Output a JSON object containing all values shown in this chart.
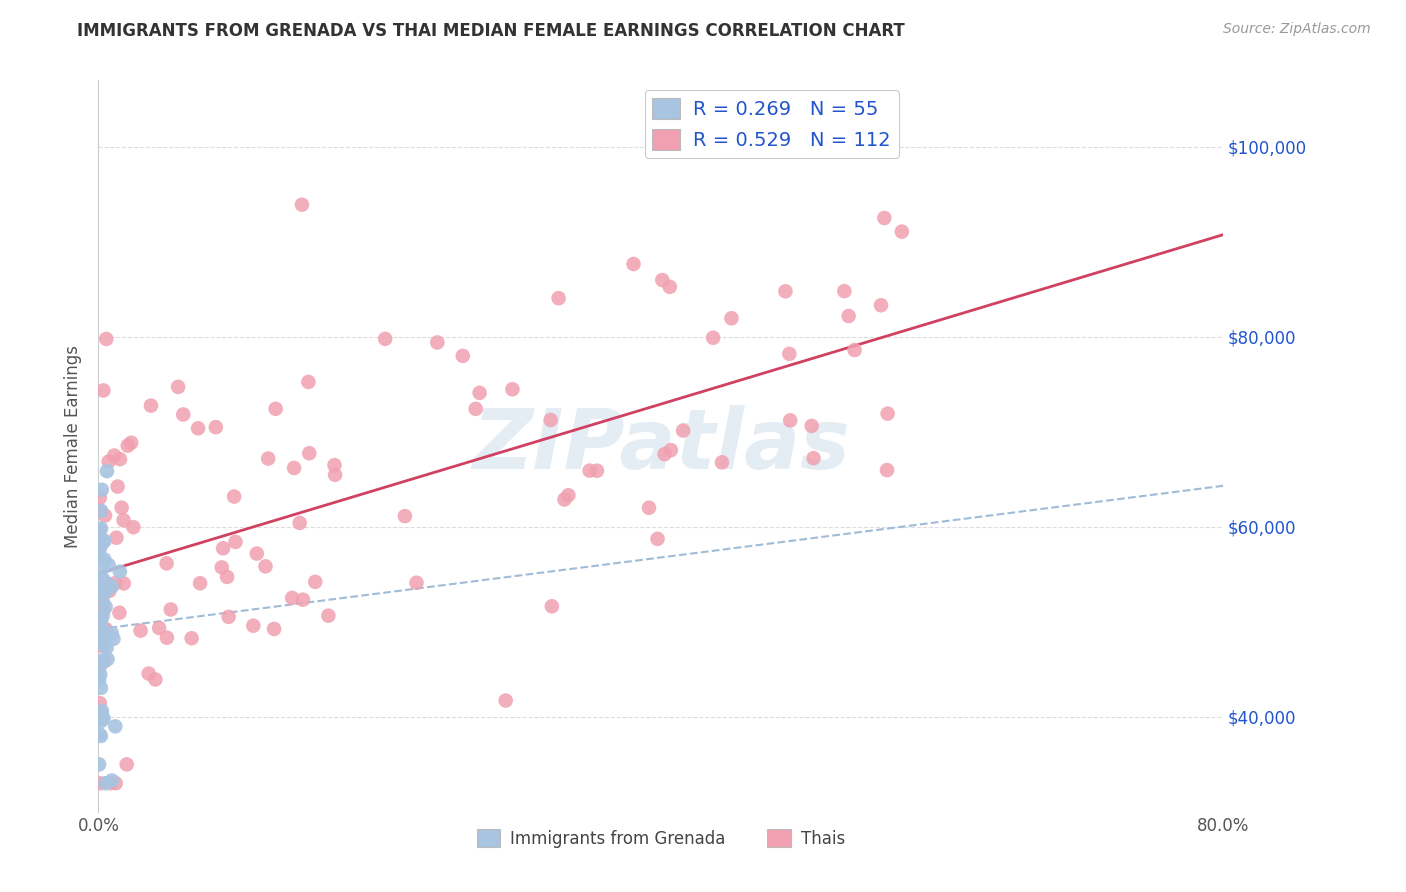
{
  "title": "IMMIGRANTS FROM GRENADA VS THAI MEDIAN FEMALE EARNINGS CORRELATION CHART",
  "source": "Source: ZipAtlas.com",
  "ylabel": "Median Female Earnings",
  "y_ticks": [
    40000,
    60000,
    80000,
    100000
  ],
  "y_tick_labels": [
    "$40,000",
    "$60,000",
    "$80,000",
    "$100,000"
  ],
  "x_range": [
    0.0,
    0.8
  ],
  "y_range": [
    30000,
    107000
  ],
  "grenada_R": 0.269,
  "grenada_N": 55,
  "thai_R": 0.529,
  "thai_N": 112,
  "grenada_color": "#a8c4e0",
  "thai_color": "#f0a0b0",
  "grenada_trend_color": "#90b0d0",
  "thai_trend_color": "#d04060",
  "legend_label_grenada": "Immigrants from Grenada",
  "legend_label_thai": "Thais",
  "text_color_blue": "#2255cc",
  "background_color": "#ffffff",
  "watermark": "ZIPatlas",
  "title_color": "#333333",
  "source_color": "#999999",
  "ylabel_color": "#555555",
  "grid_color": "#dddddd",
  "xtick_color": "#555555"
}
